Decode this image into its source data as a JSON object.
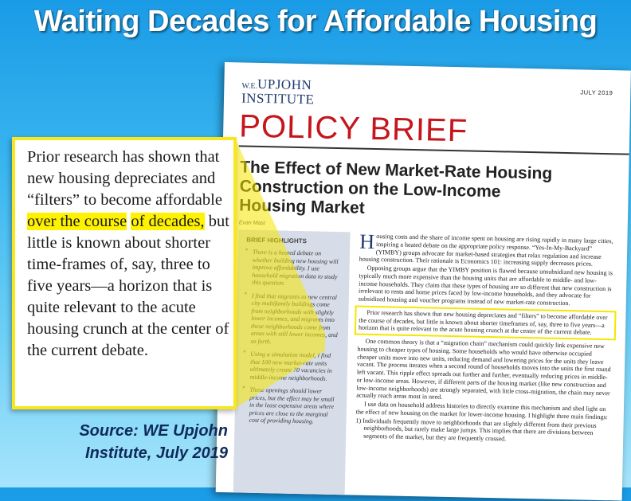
{
  "headline": "Waiting Decades for Affordable Housing",
  "document": {
    "logo_we": "W.E.",
    "logo_upjohn": "UPJOHN",
    "logo_institute": "INSTITUTE",
    "date": "JULY 2019",
    "brief_label": "POLICY BRIEF",
    "title_line1": "The Effect of New Market-Rate Housing",
    "title_line2": "Construction on the Low-Income",
    "title_line3": "Housing Market",
    "author": "Evan Mast",
    "highlights": {
      "heading": "BRIEF HIGHLIGHTS",
      "items": [
        "There is a heated debate on whether building new housing will improve affordability. I use household migration data to study this question.",
        "I find that migrants to new central city multifamily buildings come from neighborhoods with slightly lower incomes, and migrants into these neighborhoods come from areas with still lower incomes, and so forth.",
        "Using a simulation model, I find that 100 new market-rate units ultimately create 70 vacancies in middle-income neighborhoods.",
        "These openings should lower prices, but the effect may be small in the least expensive areas where prices are close to the marginal cost of providing housing."
      ]
    },
    "body": {
      "dropcap": "H",
      "p1": "ousing costs and the share of income spent on housing are rising rapidly in many large cities, inspiring a heated debate on the appropriate policy response. “Yes-In-My-Backyard” (YIMBY) groups advocate for market-based strategies that relax regulation and increase housing construction. Their rationale is Economics 101: increasing supply decreases prices.",
      "p2": "Opposing groups argue that the YIMBY position is flawed because unsubsidized new housing is typically much more expensive than the housing units that are affordable to middle- and low-income households. They claim that these types of housing are so different that new construction is irrelevant to rents and home prices faced by low-income households, and they advocate for subsidized housing and voucher programs instead of new market-rate construction.",
      "p3": "Prior research has shown that new housing depreciates and “filters” to become affordable over the course of decades, but little is known about shorter timeframes of, say, three to five years—a horizon that is quite relevant to the acute housing crunch at the center of the current debate.",
      "p4": "One common theory is that a “migration chain” mechanism could quickly link expensive new housing to cheaper types of housing. Some households who would have otherwise occupied cheaper units move into new units, reducing demand and lowering prices for the units they leave vacant. The process iterates when a second round of households moves into the units the first round left vacant. This ripple effect spreads out further and further, eventually reducing prices in middle- or low-income areas. However, if different parts of the housing market (like new construction and low-income neighborhoods) are strongly separated, with little cross-migration, the chain may never actually reach areas most in need.",
      "p5": "I use data on household address histories to directly examine this mechanism and shed light on the effect of new housing on the market for lower-income housing. I highlight three main findings:",
      "p6": "1)  Individuals frequently move to neighborhoods that are slightly different from their previous neighborhoods, but rarely make large jumps. This implies that there are divisions between segments of the market, but they are frequently crossed."
    }
  },
  "callout": {
    "text_before": "Prior research has shown that new housing depreciates and “filters” to become affordable ",
    "text_highlight_1": "over the course",
    "text_between": " ",
    "text_highlight_2": "of decades,",
    "text_after": " but little is known about shorter time-frames of, say, three to five years—a horizon that is quite relevant to the acute housing crunch at the center of the current debate."
  },
  "source": {
    "line1": "Source: WE Upjohn",
    "line2": "Institute, July 2019"
  },
  "colors": {
    "background_top": "#1a9be6",
    "brief_red": "#c5161d",
    "highlight_yellow": "#fff200",
    "callout_border": "#f8e71c",
    "source_navy": "#0f2a5a"
  }
}
